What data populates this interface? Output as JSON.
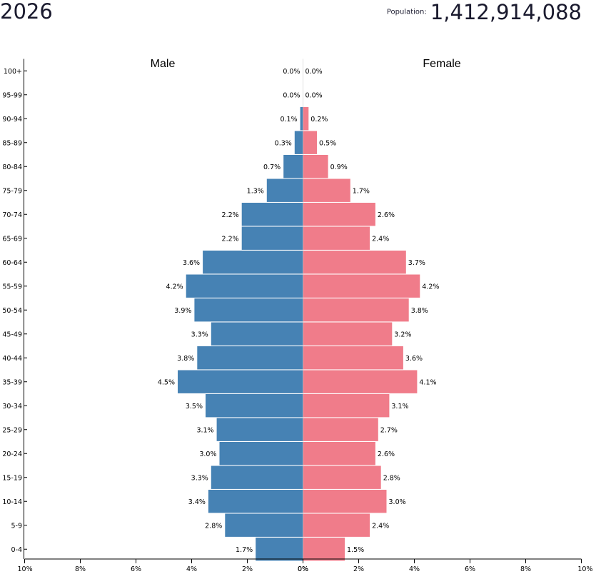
{
  "header": {
    "year": "2026",
    "population_label": "Population:",
    "population_value": "1,412,914,088"
  },
  "colors": {
    "male": "#4682b4",
    "female": "#f07c8a",
    "axis": "#000000"
  },
  "chart_data": {
    "type": "bar",
    "subtype": "population-pyramid",
    "title": "2026",
    "left_label": "Male",
    "right_label": "Female",
    "unit": "%",
    "xlim": [
      -10,
      10
    ],
    "x_ticks": [
      "10%",
      "8%",
      "6%",
      "4%",
      "2%",
      "0%",
      "0%",
      "2%",
      "4%",
      "6%",
      "8%",
      "10%"
    ],
    "categories": [
      "100+",
      "95-99",
      "90-94",
      "85-89",
      "80-84",
      "75-79",
      "70-74",
      "65-69",
      "60-64",
      "55-59",
      "50-54",
      "45-49",
      "40-44",
      "35-39",
      "30-34",
      "25-29",
      "20-24",
      "15-19",
      "10-14",
      "5-9",
      "0-4"
    ],
    "series": [
      {
        "name": "Male",
        "values": [
          0.0,
          0.0,
          0.1,
          0.3,
          0.7,
          1.3,
          2.2,
          2.2,
          3.6,
          4.2,
          3.9,
          3.3,
          3.8,
          4.5,
          3.5,
          3.1,
          3.0,
          3.3,
          3.4,
          2.8,
          1.7
        ],
        "labels": [
          "0.0%",
          "0.0%",
          "0.1%",
          "0.3%",
          "0.7%",
          "1.3%",
          "2.2%",
          "2.2%",
          "3.6%",
          "4.2%",
          "3.9%",
          "3.3%",
          "3.8%",
          "4.5%",
          "3.5%",
          "3.1%",
          "3.0%",
          "3.3%",
          "3.4%",
          "2.8%",
          "1.7%"
        ]
      },
      {
        "name": "Female",
        "values": [
          0.0,
          0.0,
          0.2,
          0.5,
          0.9,
          1.7,
          2.6,
          2.4,
          3.7,
          4.2,
          3.8,
          3.2,
          3.6,
          4.1,
          3.1,
          2.7,
          2.6,
          2.8,
          3.0,
          2.4,
          1.5
        ],
        "labels": [
          "0.0%",
          "0.0%",
          "0.2%",
          "0.5%",
          "0.9%",
          "1.7%",
          "2.6%",
          "2.4%",
          "3.7%",
          "4.2%",
          "3.8%",
          "3.2%",
          "3.6%",
          "4.1%",
          "3.1%",
          "2.7%",
          "2.6%",
          "2.8%",
          "3.0%",
          "2.4%",
          "1.5%"
        ]
      }
    ]
  }
}
